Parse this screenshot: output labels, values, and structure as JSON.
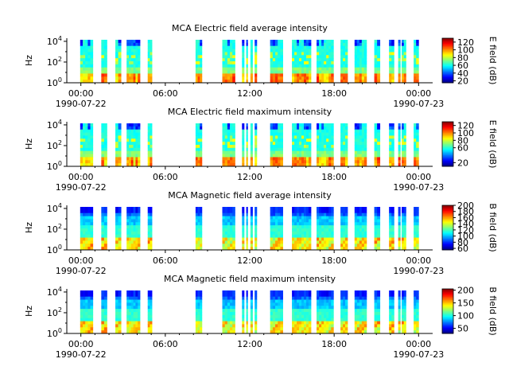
{
  "chart_data": [
    {
      "type": "heatmap",
      "title": "MCA  Electric field average intensity",
      "ylabel": "Hz",
      "y_scale": "log",
      "y_ticks": [
        {
          "exp": "0",
          "value": 1
        },
        {
          "exp": "2",
          "value": 100
        },
        {
          "exp": "4",
          "value": 10000
        }
      ],
      "ylim": [
        1,
        20000
      ],
      "x_ticks": [
        "00:00",
        "06:00",
        "12:00",
        "18:00",
        "00:00"
      ],
      "x_dates": [
        "1990-07-22",
        "",
        "",
        "",
        "1990-07-23"
      ],
      "xlim_hours": [
        -1.0,
        25.0
      ],
      "colorbar": {
        "label": "E field (dB)",
        "range": [
          15,
          130
        ],
        "ticks": [
          20,
          40,
          60,
          80,
          100,
          120
        ]
      },
      "profile": "E",
      "colormap": "jet"
    },
    {
      "type": "heatmap",
      "title": "MCA  Electric field maximum intensity",
      "ylabel": "Hz",
      "y_scale": "log",
      "y_ticks": [
        {
          "exp": "0",
          "value": 1
        },
        {
          "exp": "2",
          "value": 100
        },
        {
          "exp": "4",
          "value": 10000
        }
      ],
      "ylim": [
        1,
        20000
      ],
      "x_ticks": [
        "00:00",
        "06:00",
        "12:00",
        "18:00",
        "00:00"
      ],
      "x_dates": [
        "1990-07-22",
        "",
        "",
        "",
        "1990-07-23"
      ],
      "xlim_hours": [
        -1.0,
        25.0
      ],
      "colorbar": {
        "label": "E field (dB)",
        "range": [
          10,
          130
        ],
        "ticks": [
          20,
          60,
          80,
          100,
          120
        ]
      },
      "profile": "E",
      "colormap": "jet"
    },
    {
      "type": "heatmap",
      "title": "MCA  Magnetic field average intensity",
      "ylabel": "Hz",
      "y_scale": "log",
      "y_ticks": [
        {
          "exp": "0",
          "value": 1
        },
        {
          "exp": "2",
          "value": 100
        },
        {
          "exp": "4",
          "value": 10000
        }
      ],
      "ylim": [
        1,
        20000
      ],
      "x_ticks": [
        "00:00",
        "06:00",
        "12:00",
        "18:00",
        "00:00"
      ],
      "x_dates": [
        "1990-07-22",
        "",
        "",
        "",
        "1990-07-23"
      ],
      "xlim_hours": [
        -1.0,
        25.0
      ],
      "colorbar": {
        "label": "B field (dB)",
        "range": [
          55,
          200
        ],
        "ticks": [
          60,
          80,
          100,
          120,
          140,
          160,
          180,
          200
        ]
      },
      "profile": "B",
      "colormap": "jet"
    },
    {
      "type": "heatmap",
      "title": "MCA  Magnetic field maximum intensity",
      "ylabel": "Hz",
      "y_scale": "log",
      "y_ticks": [
        {
          "exp": "0",
          "value": 1
        },
        {
          "exp": "2",
          "value": 100
        },
        {
          "exp": "4",
          "value": 10000
        }
      ],
      "ylim": [
        1,
        20000
      ],
      "x_ticks": [
        "00:00",
        "06:00",
        "12:00",
        "18:00",
        "00:00"
      ],
      "x_dates": [
        "1990-07-22",
        "",
        "",
        "",
        "1990-07-23"
      ],
      "xlim_hours": [
        -1.0,
        25.0
      ],
      "colorbar": {
        "label": "B field (dB)",
        "range": [
          30,
          205
        ],
        "ticks": [
          50,
          100,
          150,
          200
        ]
      },
      "profile": "B",
      "colormap": "jet"
    }
  ],
  "coverage_hours": [
    [
      -0.05,
      0.85
    ],
    [
      1.45,
      1.85
    ],
    [
      2.45,
      2.85
    ],
    [
      3.25,
      4.2
    ],
    [
      4.75,
      5.05
    ],
    [
      8.15,
      8.6
    ],
    [
      10.05,
      10.95
    ],
    [
      11.45,
      11.6
    ],
    [
      11.75,
      11.85
    ],
    [
      12.05,
      12.2
    ],
    [
      12.35,
      12.5
    ],
    [
      13.45,
      14.35
    ],
    [
      15.0,
      16.35
    ],
    [
      16.75,
      17.95
    ],
    [
      18.45,
      18.95
    ],
    [
      19.45,
      20.3
    ],
    [
      20.85,
      21.25
    ],
    [
      21.9,
      22.25
    ],
    [
      22.55,
      22.7
    ],
    [
      22.8,
      23.1
    ],
    [
      23.65,
      24.0
    ]
  ]
}
